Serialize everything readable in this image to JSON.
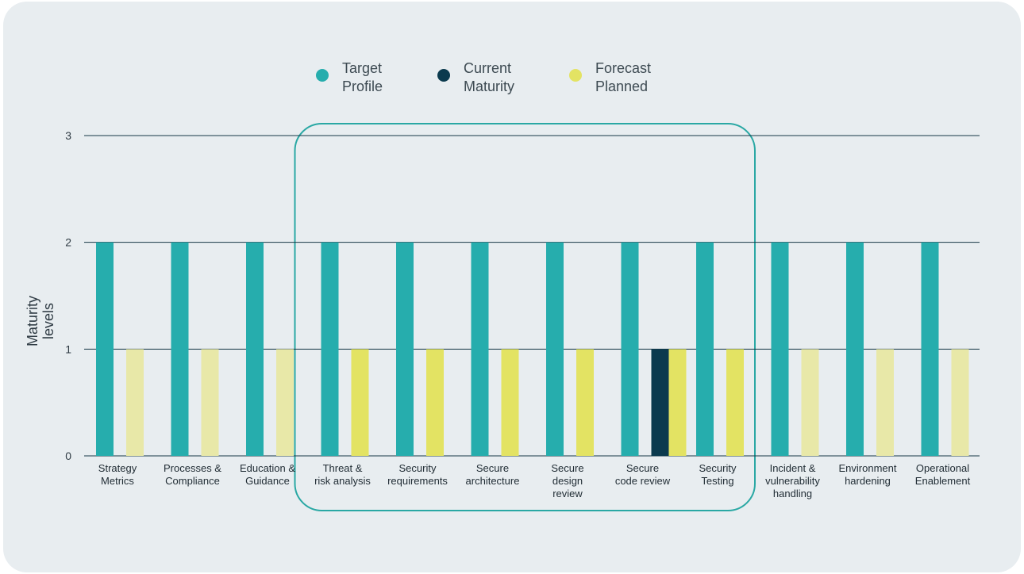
{
  "chart_data": {
    "type": "bar",
    "ylabel": "Maturity levels",
    "ylabel_lines": [
      "Maturity",
      "levels"
    ],
    "ylim": [
      0,
      3
    ],
    "yticks": [
      "0",
      "1",
      "2",
      "3"
    ],
    "grid": true,
    "legend_position": "top-center",
    "categories": [
      [
        "Strategy",
        "Metrics"
      ],
      [
        "Processes &",
        "Compliance"
      ],
      [
        "Education &",
        "Guidance"
      ],
      [
        "Threat &",
        "risk analysis"
      ],
      [
        "Security",
        "requirements"
      ],
      [
        "Secure",
        "architecture"
      ],
      [
        "Secure",
        "design",
        "review"
      ],
      [
        "Secure",
        "code review"
      ],
      [
        "Security",
        "Testing"
      ],
      [
        "Incident &",
        "vulnerability",
        "handling"
      ],
      [
        "Environment",
        "hardening"
      ],
      [
        "Operational",
        "Enablement"
      ]
    ],
    "series": [
      {
        "name": "Target Profile",
        "legend_lines": [
          "Target",
          "Profile"
        ],
        "color": "#26adad",
        "values": [
          2,
          2,
          2,
          2,
          2,
          2,
          2,
          2,
          2,
          2,
          2,
          2
        ]
      },
      {
        "name": "Current Maturity",
        "legend_lines": [
          "Current",
          "Maturity"
        ],
        "color": "#0b3a4e",
        "values": [
          0,
          0,
          0,
          0,
          0,
          0,
          0,
          1,
          0,
          0,
          0,
          0
        ]
      },
      {
        "name": "Forecast Planned",
        "legend_lines": [
          "Forecast",
          "Planned"
        ],
        "color": "#e3e363",
        "muted_color": "#e8e8a8",
        "values": [
          1,
          1,
          1,
          1,
          1,
          1,
          1,
          1,
          1,
          1,
          1,
          1
        ]
      }
    ],
    "highlighted_categories": [
      3,
      4,
      5,
      6,
      7,
      8
    ],
    "highlight_color": "#2aa8a4",
    "grid_color": "#163746"
  }
}
